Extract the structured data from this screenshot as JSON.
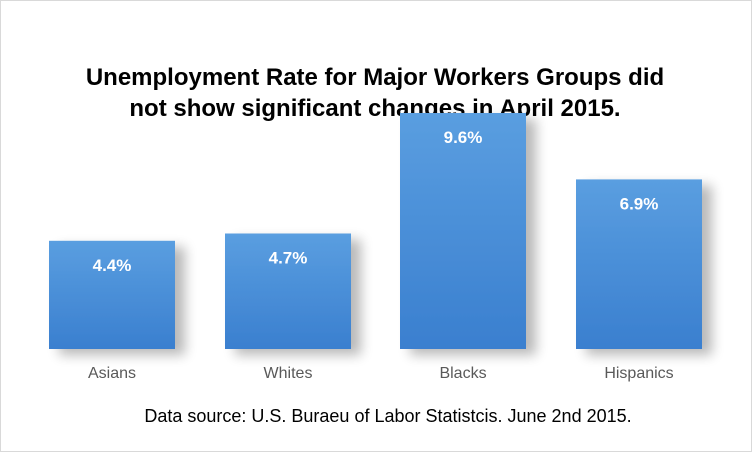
{
  "chart_data": {
    "type": "bar",
    "title_lines": [
      "Unemployment Rate for Major Workers Groups did",
      "not show significant changes in April 2015."
    ],
    "categories": [
      "Asians",
      "Whites",
      "Blacks",
      "Hispanics"
    ],
    "values": [
      4.4,
      4.7,
      9.6,
      6.9
    ],
    "data_labels": [
      "4.4%",
      "4.7%",
      "9.6%",
      "6.9%"
    ],
    "xlabel": "",
    "ylabel": "",
    "ylim": [
      0,
      12
    ],
    "grid": false,
    "legend": "none",
    "bar_color": "#4a8fd8",
    "source_note": "Data source: U.S. Buraeu of Labor Statistcis. June 2nd 2015."
  }
}
